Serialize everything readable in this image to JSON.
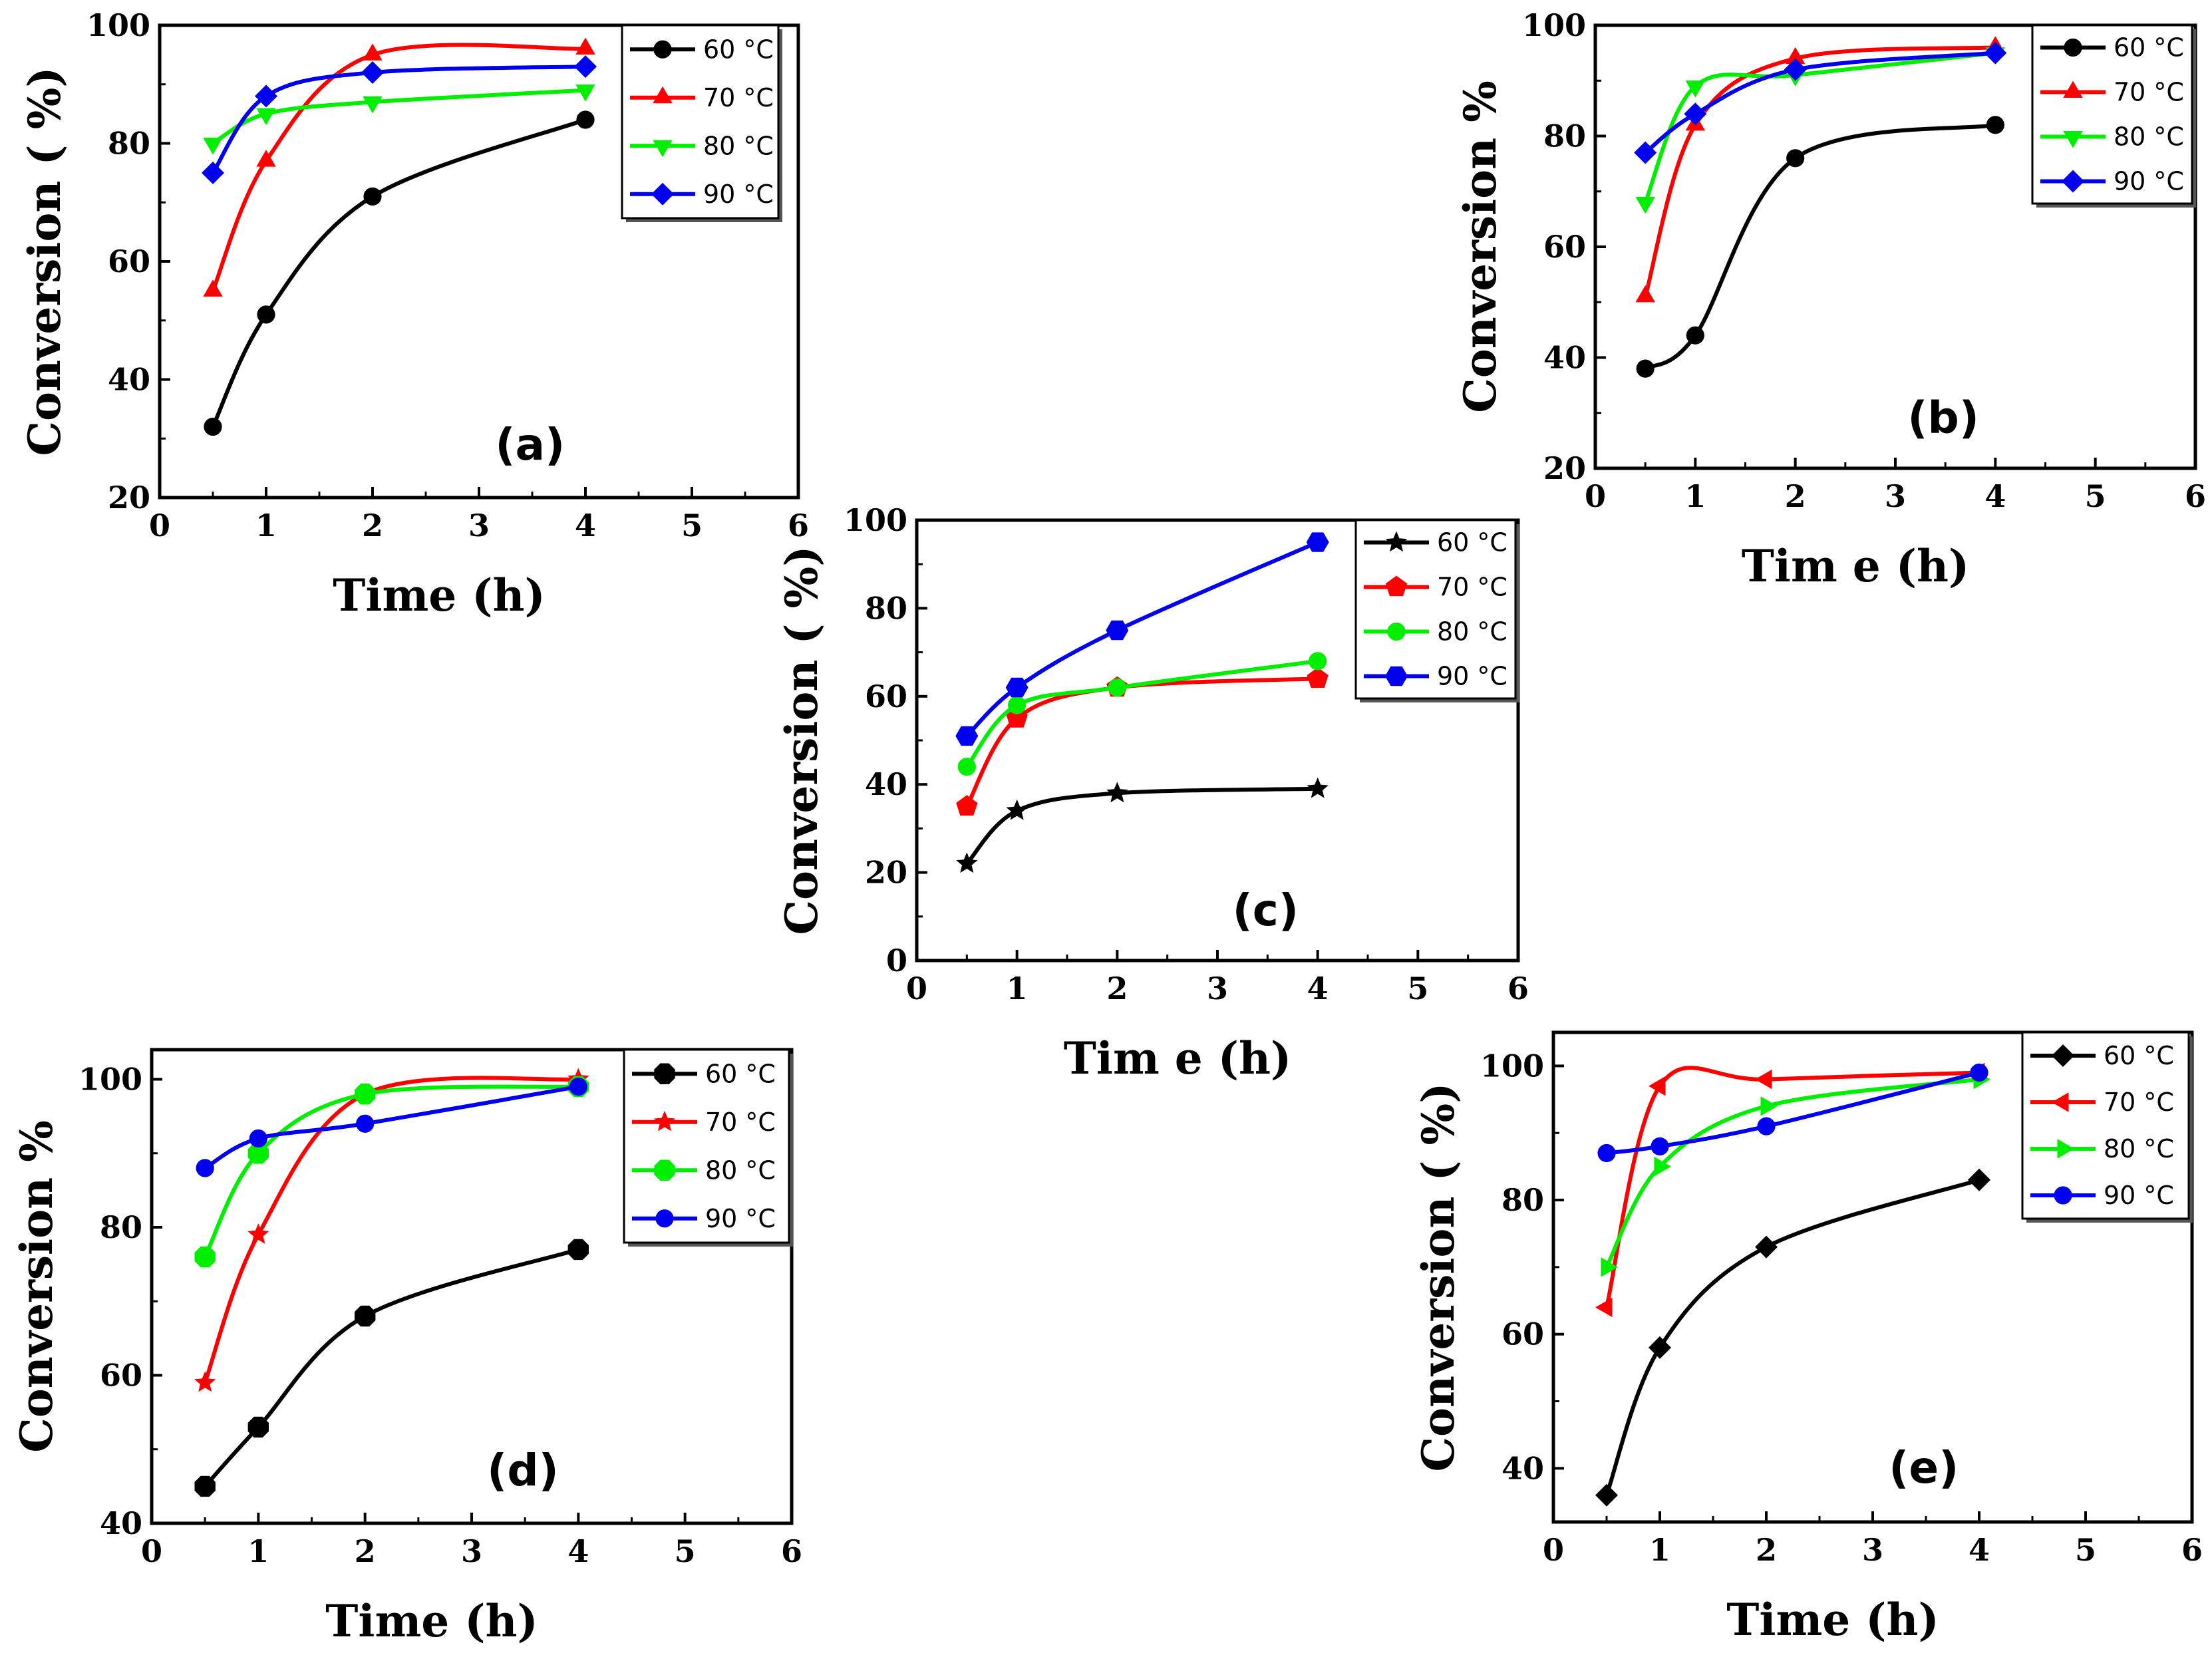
{
  "chart_data": [
    {
      "id": "a",
      "type": "line",
      "panel_label": "(a)",
      "xlabel": "Time (h)",
      "ylabel": "Conversion ( %)",
      "xlim": [
        0,
        6
      ],
      "ylim": [
        20,
        100
      ],
      "xticks": [
        "0",
        "1",
        "2",
        "3",
        "4",
        "5",
        "6"
      ],
      "yticks": [
        "20",
        "40",
        "60",
        "80",
        "100"
      ],
      "x": [
        0.5,
        1,
        2,
        4
      ],
      "legend_position": "top-right",
      "series": [
        {
          "name": "60 °C",
          "color": "#000000",
          "marker": "circle",
          "values": [
            32,
            51,
            71,
            84
          ]
        },
        {
          "name": "70 °C",
          "color": "#ff0000",
          "marker": "triangle-up",
          "values": [
            55,
            77,
            95,
            96
          ]
        },
        {
          "name": "80 °C",
          "color": "#00ee00",
          "marker": "triangle-down",
          "values": [
            80,
            85,
            87,
            89
          ]
        },
        {
          "name": "90 °C",
          "color": "#0000ee",
          "marker": "diamond",
          "values": [
            75,
            88,
            92,
            93
          ]
        }
      ]
    },
    {
      "id": "b",
      "type": "line",
      "panel_label": "(b)",
      "xlabel": "Tim e (h)",
      "ylabel": "Conversion %",
      "xlim": [
        0,
        6
      ],
      "ylim": [
        20,
        100
      ],
      "xticks": [
        "0",
        "1",
        "2",
        "3",
        "4",
        "5",
        "6"
      ],
      "yticks": [
        "20",
        "40",
        "60",
        "80",
        "100"
      ],
      "x": [
        0.5,
        1,
        2,
        4
      ],
      "legend_position": "top-right",
      "series": [
        {
          "name": "60 °C",
          "color": "#000000",
          "marker": "circle",
          "values": [
            38,
            44,
            76,
            82
          ]
        },
        {
          "name": "70 °C",
          "color": "#ff0000",
          "marker": "triangle-up",
          "values": [
            51,
            82,
            94,
            96
          ]
        },
        {
          "name": "80 °C",
          "color": "#00ee00",
          "marker": "triangle-down",
          "values": [
            68,
            89,
            91,
            95
          ]
        },
        {
          "name": "90 °C",
          "color": "#0000ee",
          "marker": "diamond",
          "values": [
            77,
            84,
            92,
            95
          ]
        }
      ]
    },
    {
      "id": "c",
      "type": "line",
      "panel_label": "(c)",
      "xlabel": "Tim e (h)",
      "ylabel": "Conversion ( %)",
      "xlim": [
        0,
        6
      ],
      "ylim": [
        0,
        100
      ],
      "xticks": [
        "0",
        "1",
        "2",
        "3",
        "4",
        "5",
        "6"
      ],
      "yticks": [
        "0",
        "20",
        "40",
        "60",
        "80",
        "100"
      ],
      "x": [
        0.5,
        1,
        2,
        4
      ],
      "legend_position": "top-right",
      "series": [
        {
          "name": "60 °C",
          "color": "#000000",
          "marker": "star",
          "values": [
            22,
            34,
            38,
            39
          ]
        },
        {
          "name": "70 °C",
          "color": "#ff0000",
          "marker": "pentagon",
          "values": [
            35,
            55,
            62,
            64
          ]
        },
        {
          "name": "80 °C",
          "color": "#00ee00",
          "marker": "circle",
          "values": [
            44,
            58,
            62,
            68
          ]
        },
        {
          "name": "90 °C",
          "color": "#0000ee",
          "marker": "hexagon",
          "values": [
            51,
            62,
            75,
            95
          ]
        }
      ]
    },
    {
      "id": "d",
      "type": "line",
      "panel_label": "(d)",
      "xlabel": "Time (h)",
      "ylabel": "Conversion %",
      "xlim": [
        0,
        6
      ],
      "ylim": [
        40,
        104
      ],
      "xticks": [
        "0",
        "1",
        "2",
        "3",
        "4",
        "5",
        "6"
      ],
      "yticks": [
        "40",
        "60",
        "80",
        "100"
      ],
      "x": [
        0.5,
        1,
        2,
        4
      ],
      "legend_position": "top-right",
      "series": [
        {
          "name": "60 °C",
          "color": "#000000",
          "marker": "octagon",
          "values": [
            45,
            53,
            68,
            77
          ]
        },
        {
          "name": "70 °C",
          "color": "#ff0000",
          "marker": "star",
          "values": [
            59,
            79,
            98,
            100
          ]
        },
        {
          "name": "80 °C",
          "color": "#00ee00",
          "marker": "octagon",
          "values": [
            76,
            90,
            98,
            99
          ]
        },
        {
          "name": "90 °C",
          "color": "#0000ee",
          "marker": "circle",
          "values": [
            88,
            92,
            94,
            99
          ]
        }
      ]
    },
    {
      "id": "e",
      "type": "line",
      "panel_label": "(e)",
      "xlabel": "Time (h)",
      "ylabel": "Conversion ( %)",
      "xlim": [
        0,
        6
      ],
      "ylim": [
        32,
        105
      ],
      "xticks": [
        "0",
        "1",
        "2",
        "3",
        "4",
        "5",
        "6"
      ],
      "yticks": [
        "40",
        "60",
        "80",
        "100"
      ],
      "x": [
        0.5,
        1,
        2,
        4
      ],
      "legend_position": "top-right",
      "series": [
        {
          "name": "60 °C",
          "color": "#000000",
          "marker": "diamond",
          "values": [
            36,
            58,
            73,
            83
          ]
        },
        {
          "name": "70 °C",
          "color": "#ff0000",
          "marker": "triangle-left",
          "values": [
            64,
            97,
            98,
            99
          ]
        },
        {
          "name": "80 °C",
          "color": "#00ee00",
          "marker": "triangle-right",
          "values": [
            70,
            85,
            94,
            98
          ]
        },
        {
          "name": "90 °C",
          "color": "#0000ee",
          "marker": "circle",
          "values": [
            87,
            88,
            91,
            99
          ]
        }
      ]
    }
  ]
}
